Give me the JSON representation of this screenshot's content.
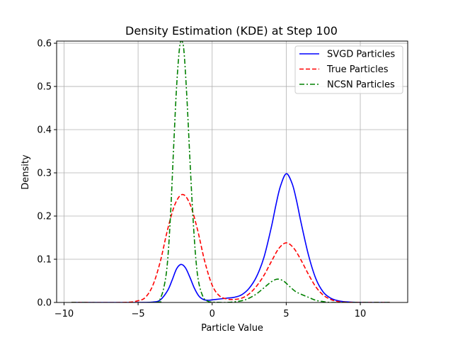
{
  "chart_data": {
    "type": "line",
    "title": "Density Estimation (KDE) at Step 100",
    "xlabel": "Particle Value",
    "ylabel": "Density",
    "xlim": [
      -10.5,
      13.2
    ],
    "ylim": [
      0,
      0.605
    ],
    "xticks": [
      -10,
      -5,
      0,
      5,
      10
    ],
    "yticks": [
      0.0,
      0.1,
      0.2,
      0.3,
      0.4,
      0.5,
      0.6
    ],
    "xtick_labels": [
      "−10",
      "−5",
      "0",
      "5",
      "10"
    ],
    "ytick_labels": [
      "0.0",
      "0.1",
      "0.2",
      "0.3",
      "0.4",
      "0.5",
      "0.6"
    ],
    "grid": true,
    "legend_position": "top-right",
    "series": [
      {
        "name": "SVGD Particles",
        "color": "#0000ff",
        "style": "solid",
        "x": [
          -9.5,
          -5,
          -4,
          -3.5,
          -3,
          -2.7,
          -2.4,
          -2.1,
          -1.8,
          -1.5,
          -1.2,
          -0.9,
          -0.6,
          -0.3,
          0,
          0.5,
          1,
          1.5,
          2,
          2.5,
          3,
          3.5,
          4,
          4.3,
          4.6,
          5,
          5.4,
          5.7,
          6,
          6.5,
          7,
          7.5,
          8,
          8.5,
          9,
          10,
          12
        ],
        "y": [
          0,
          0,
          0.001,
          0.006,
          0.028,
          0.052,
          0.078,
          0.088,
          0.08,
          0.058,
          0.033,
          0.015,
          0.007,
          0.005,
          0.006,
          0.008,
          0.01,
          0.012,
          0.018,
          0.033,
          0.06,
          0.105,
          0.175,
          0.225,
          0.268,
          0.298,
          0.275,
          0.235,
          0.185,
          0.11,
          0.055,
          0.024,
          0.01,
          0.004,
          0.0015,
          0,
          0
        ]
      },
      {
        "name": "True Particles",
        "color": "#ff0000",
        "style": "dashed",
        "x": [
          -9.5,
          -6,
          -5,
          -4.5,
          -4,
          -3.5,
          -3,
          -2.5,
          -2,
          -1.5,
          -1,
          -0.5,
          0,
          0.5,
          1,
          1.5,
          2,
          2.5,
          3,
          3.5,
          4,
          4.5,
          5,
          5.5,
          6,
          6.5,
          7,
          7.5,
          8,
          8.5,
          9,
          10,
          12
        ],
        "y": [
          0,
          0,
          0.004,
          0.012,
          0.04,
          0.095,
          0.17,
          0.228,
          0.25,
          0.228,
          0.17,
          0.095,
          0.04,
          0.015,
          0.008,
          0.007,
          0.01,
          0.02,
          0.038,
          0.063,
          0.095,
          0.125,
          0.138,
          0.126,
          0.098,
          0.065,
          0.036,
          0.017,
          0.007,
          0.002,
          0.0005,
          0,
          0
        ]
      },
      {
        "name": "NCSN Particles",
        "color": "#008000",
        "style": "dashdot",
        "x": [
          -9.5,
          -4,
          -3.5,
          -3.2,
          -3,
          -2.8,
          -2.6,
          -2.4,
          -2.2,
          -2.05,
          -1.9,
          -1.7,
          -1.5,
          -1.3,
          -1.1,
          -0.9,
          -0.6,
          -0.3,
          0,
          1,
          2,
          2.5,
          3,
          3.5,
          4,
          4.4,
          4.8,
          5.2,
          5.6,
          6,
          6.5,
          7,
          7.5,
          8,
          9,
          12
        ],
        "y": [
          0,
          0,
          0.01,
          0.045,
          0.1,
          0.21,
          0.36,
          0.5,
          0.59,
          0.605,
          0.58,
          0.47,
          0.33,
          0.2,
          0.1,
          0.045,
          0.012,
          0.003,
          0.001,
          0,
          0.004,
          0.01,
          0.02,
          0.034,
          0.048,
          0.054,
          0.05,
          0.038,
          0.026,
          0.019,
          0.012,
          0.005,
          0.002,
          0,
          0,
          0
        ]
      }
    ]
  }
}
